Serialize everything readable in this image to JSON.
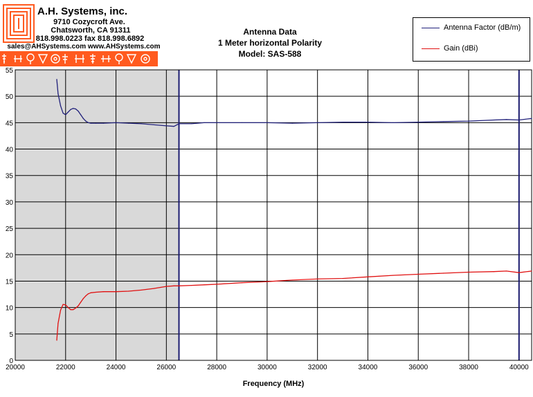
{
  "header": {
    "company": "A.H. Systems, inc.",
    "address_1": "9710 Cozycroft Ave.",
    "address_2": "Chatsworth, CA 91311",
    "phone": "818.998.0223 fax 818.998.6892",
    "web": "sales@AHSystems.com www.AHSystems.com"
  },
  "chart_title": {
    "line_1": "Antenna Data",
    "line_2": "1 Meter horizontal Polarity",
    "line_3": "Model: SAS-588"
  },
  "colors": {
    "antenna_factor": "#1f1f7a",
    "gain": "#e01010",
    "shaded": "#d9d9d9",
    "marker": "#1a1a6e",
    "brand_strip": "#ff5a1f"
  },
  "chart_data": {
    "type": "line",
    "xlabel": "Frequency (MHz)",
    "ylabel": "",
    "xlim": [
      20000,
      40500
    ],
    "ylim": [
      0,
      55
    ],
    "x_ticks": [
      20000,
      22000,
      24000,
      26000,
      28000,
      30000,
      32000,
      34000,
      36000,
      38000,
      40000
    ],
    "y_ticks": [
      0,
      5,
      10,
      15,
      20,
      25,
      30,
      35,
      40,
      45,
      50,
      55
    ],
    "grid": true,
    "legend_position": "top-right",
    "shaded_range_mhz": [
      20000,
      26500
    ],
    "vertical_markers_mhz": [
      26500,
      40000
    ],
    "series": [
      {
        "name": "Antenna Factor (dB/m)",
        "x": [
          21650,
          21700,
          21800,
          21900,
          22000,
          22100,
          22200,
          22300,
          22400,
          22500,
          22600,
          22700,
          22800,
          22900,
          23000,
          23200,
          23500,
          24000,
          24500,
          25000,
          25500,
          26000,
          26300,
          26500,
          27000,
          27500,
          28000,
          29000,
          30000,
          31000,
          32000,
          33000,
          34000,
          35000,
          36000,
          37000,
          38000,
          39000,
          39500,
          40000,
          40500
        ],
        "values": [
          53.2,
          50.5,
          48.2,
          46.8,
          46.5,
          47.0,
          47.5,
          47.7,
          47.6,
          47.2,
          46.5,
          45.8,
          45.3,
          45.0,
          44.9,
          44.9,
          44.9,
          45.0,
          44.9,
          44.8,
          44.6,
          44.4,
          44.3,
          44.8,
          44.8,
          45.0,
          45.0,
          45.0,
          45.0,
          44.9,
          45.0,
          45.1,
          45.1,
          45.0,
          45.1,
          45.2,
          45.3,
          45.5,
          45.6,
          45.5,
          45.8
        ]
      },
      {
        "name": "Gain (dBi)",
        "x": [
          21650,
          21700,
          21800,
          21900,
          22000,
          22100,
          22200,
          22300,
          22400,
          22500,
          22600,
          22700,
          22800,
          22900,
          23000,
          23200,
          23500,
          24000,
          24500,
          25000,
          25500,
          26000,
          26300,
          26500,
          27000,
          27500,
          28000,
          29000,
          30000,
          31000,
          32000,
          33000,
          34000,
          35000,
          36000,
          37000,
          38000,
          39000,
          39500,
          40000,
          40500
        ],
        "values": [
          3.8,
          7.0,
          9.5,
          10.6,
          10.5,
          10.0,
          9.6,
          9.6,
          9.9,
          10.3,
          11.0,
          11.7,
          12.2,
          12.6,
          12.8,
          12.9,
          13.0,
          13.0,
          13.1,
          13.3,
          13.6,
          14.0,
          14.1,
          14.1,
          14.2,
          14.3,
          14.4,
          14.7,
          14.9,
          15.2,
          15.4,
          15.5,
          15.8,
          16.1,
          16.3,
          16.5,
          16.7,
          16.8,
          16.9,
          16.6,
          16.9
        ]
      }
    ]
  }
}
